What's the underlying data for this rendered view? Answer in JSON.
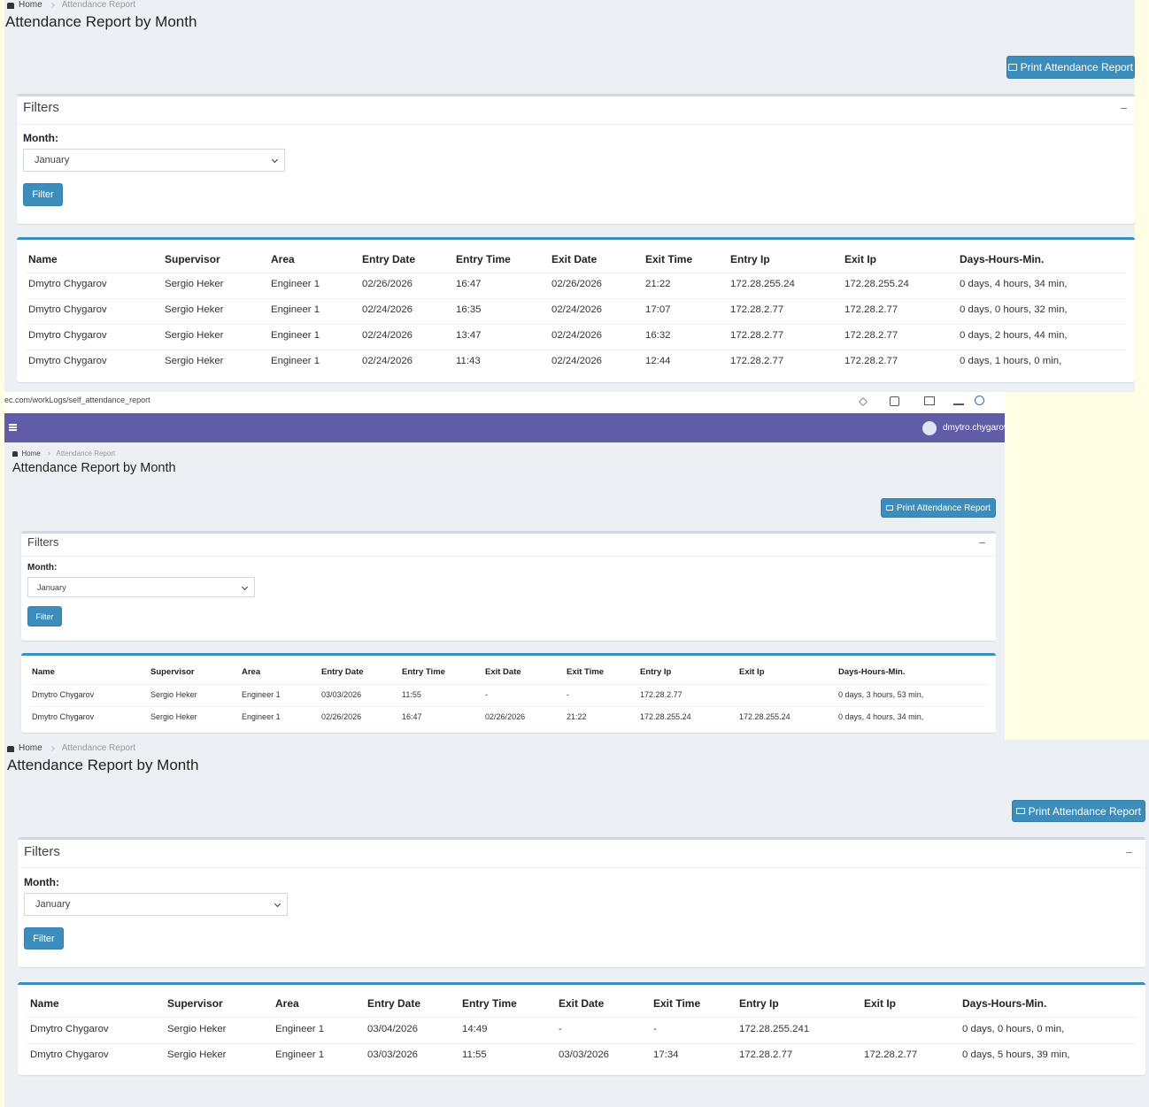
{
  "browser": {
    "url": "ec.com/workLogs/self_attendance_report"
  },
  "navbar": {
    "user": "dmytro.chygarov"
  },
  "panels": [
    {
      "breadcrumb": {
        "home": "Home",
        "current": "Attendance Report"
      },
      "title": "Attendance Report by Month",
      "print_button": "Print Attendance Report",
      "filters": {
        "title": "Filters",
        "month_label": "Month:",
        "month": "January",
        "button": "Filter"
      },
      "table": {
        "headers": [
          "Name",
          "Supervisor",
          "Area",
          "Entry Date",
          "Entry Time",
          "Exit Date",
          "Exit Time",
          "Entry Ip",
          "Exit Ip",
          "Days-Hours-Min."
        ],
        "rows": [
          [
            "Dmytro Chygarov",
            "Sergio Heker",
            "Engineer 1",
            "02/26/2026",
            "16:47",
            "02/26/2026",
            "21:22",
            "172.28.255.24",
            "172.28.255.24",
            "0 days, 4 hours, 34 min,"
          ],
          [
            "Dmytro Chygarov",
            "Sergio Heker",
            "Engineer 1",
            "02/24/2026",
            "16:35",
            "02/24/2026",
            "17:07",
            "172.28.2.77",
            "172.28.2.77",
            "0 days, 0 hours, 32 min,"
          ],
          [
            "Dmytro Chygarov",
            "Sergio Heker",
            "Engineer 1",
            "02/24/2026",
            "13:47",
            "02/24/2026",
            "16:32",
            "172.28.2.77",
            "172.28.2.77",
            "0 days, 2 hours, 44 min,"
          ],
          [
            "Dmytro Chygarov",
            "Sergio Heker",
            "Engineer 1",
            "02/24/2026",
            "11:43",
            "02/24/2026",
            "12:44",
            "172.28.2.77",
            "172.28.2.77",
            "0 days, 1 hours, 0 min,"
          ]
        ]
      }
    },
    {
      "breadcrumb": {
        "home": "Home",
        "current": "Attendance Report"
      },
      "title": "Attendance Report by Month",
      "print_button": "Print Attendance Report",
      "filters": {
        "title": "Filters",
        "month_label": "Month:",
        "month": "January",
        "button": "Filter"
      },
      "table": {
        "headers": [
          "Name",
          "Supervisor",
          "Area",
          "Entry Date",
          "Entry Time",
          "Exit Date",
          "Exit Time",
          "Entry Ip",
          "Exit Ip",
          "Days-Hours-Min."
        ],
        "rows": [
          [
            "Dmytro Chygarov",
            "Sergio Heker",
            "Engineer 1",
            "03/03/2026",
            "11:55",
            "-",
            "-",
            "172.28.2.77",
            null,
            "0 days, 3 hours, 53 min,"
          ],
          [
            "Dmytro Chygarov",
            "Sergio Heker",
            "Engineer 1",
            "02/26/2026",
            "16:47",
            "02/26/2026",
            "21:22",
            "172.28.255.24",
            "172.28.255.24",
            "0 days, 4 hours, 34 min,"
          ]
        ]
      }
    },
    {
      "breadcrumb": {
        "home": "Home",
        "current": "Attendance Report"
      },
      "title": "Attendance Report by Month",
      "print_button": "Print Attendance Report",
      "filters": {
        "title": "Filters",
        "month_label": "Month:",
        "month": "January",
        "button": "Filter"
      },
      "table": {
        "headers": [
          "Name",
          "Supervisor",
          "Area",
          "Entry Date",
          "Entry Time",
          "Exit Date",
          "Exit Time",
          "Entry Ip",
          "Exit Ip",
          "Days-Hours-Min."
        ],
        "rows": [
          [
            "Dmytro Chygarov",
            "Sergio Heker",
            "Engineer 1",
            "03/04/2026",
            "14:49",
            "-",
            "-",
            "172.28.255.241",
            null,
            "0 days, 0 hours, 0 min,"
          ],
          [
            "Dmytro Chygarov",
            "Sergio Heker",
            "Engineer 1",
            "03/03/2026",
            "11:55",
            "03/03/2026",
            "17:34",
            "172.28.2.77",
            "172.28.2.77",
            "0 days, 5 hours, 39 min,"
          ]
        ]
      }
    }
  ]
}
